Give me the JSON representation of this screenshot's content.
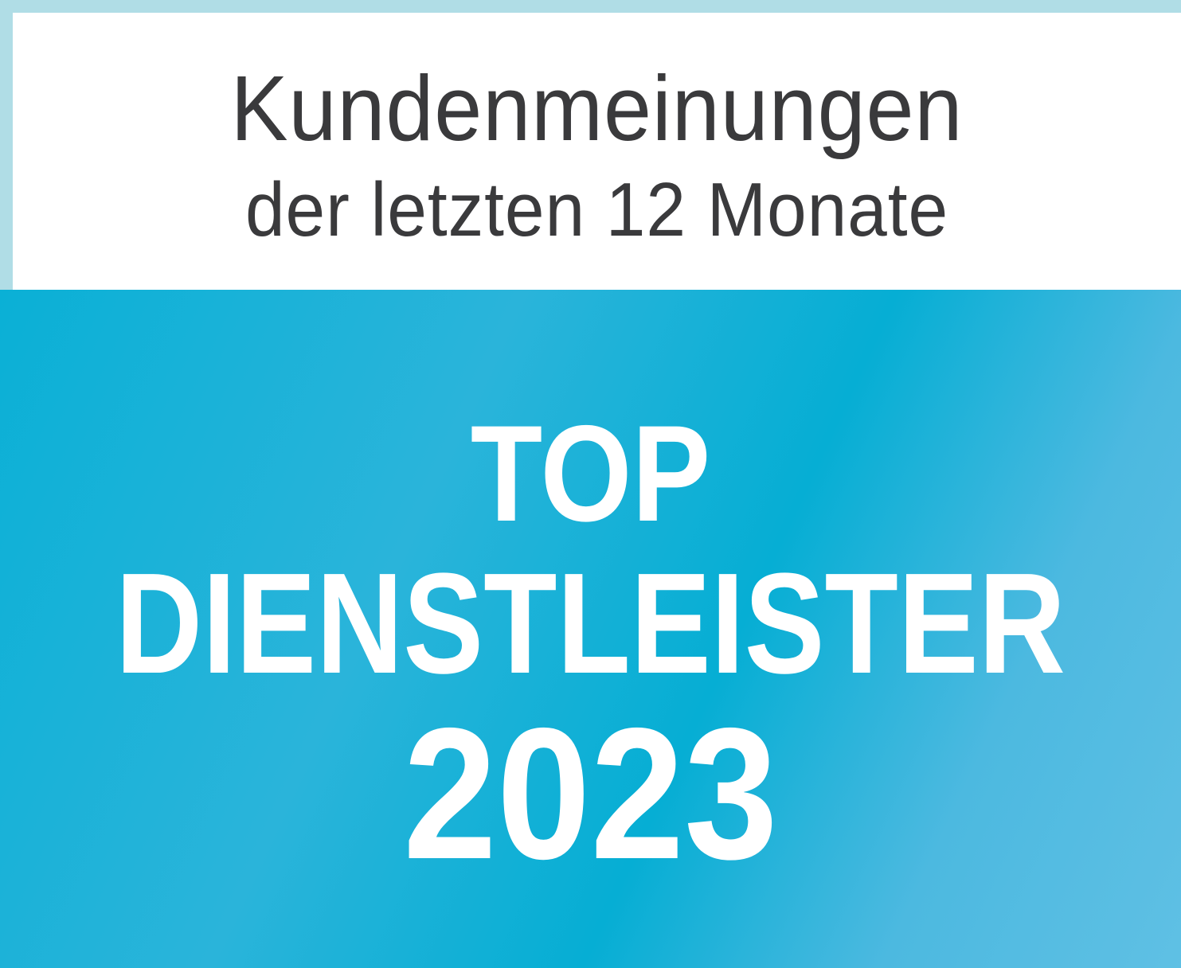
{
  "header": {
    "line1": "Kundenmeinungen",
    "line2": "der letzten 12 Monate"
  },
  "badge": {
    "line1": "TOP",
    "line2": "DIENSTLEISTER",
    "year": "2023"
  },
  "colors": {
    "frame": "#b0dde6",
    "accent_blue": "#0ab0d6",
    "text_dark": "#3a3a3c"
  }
}
